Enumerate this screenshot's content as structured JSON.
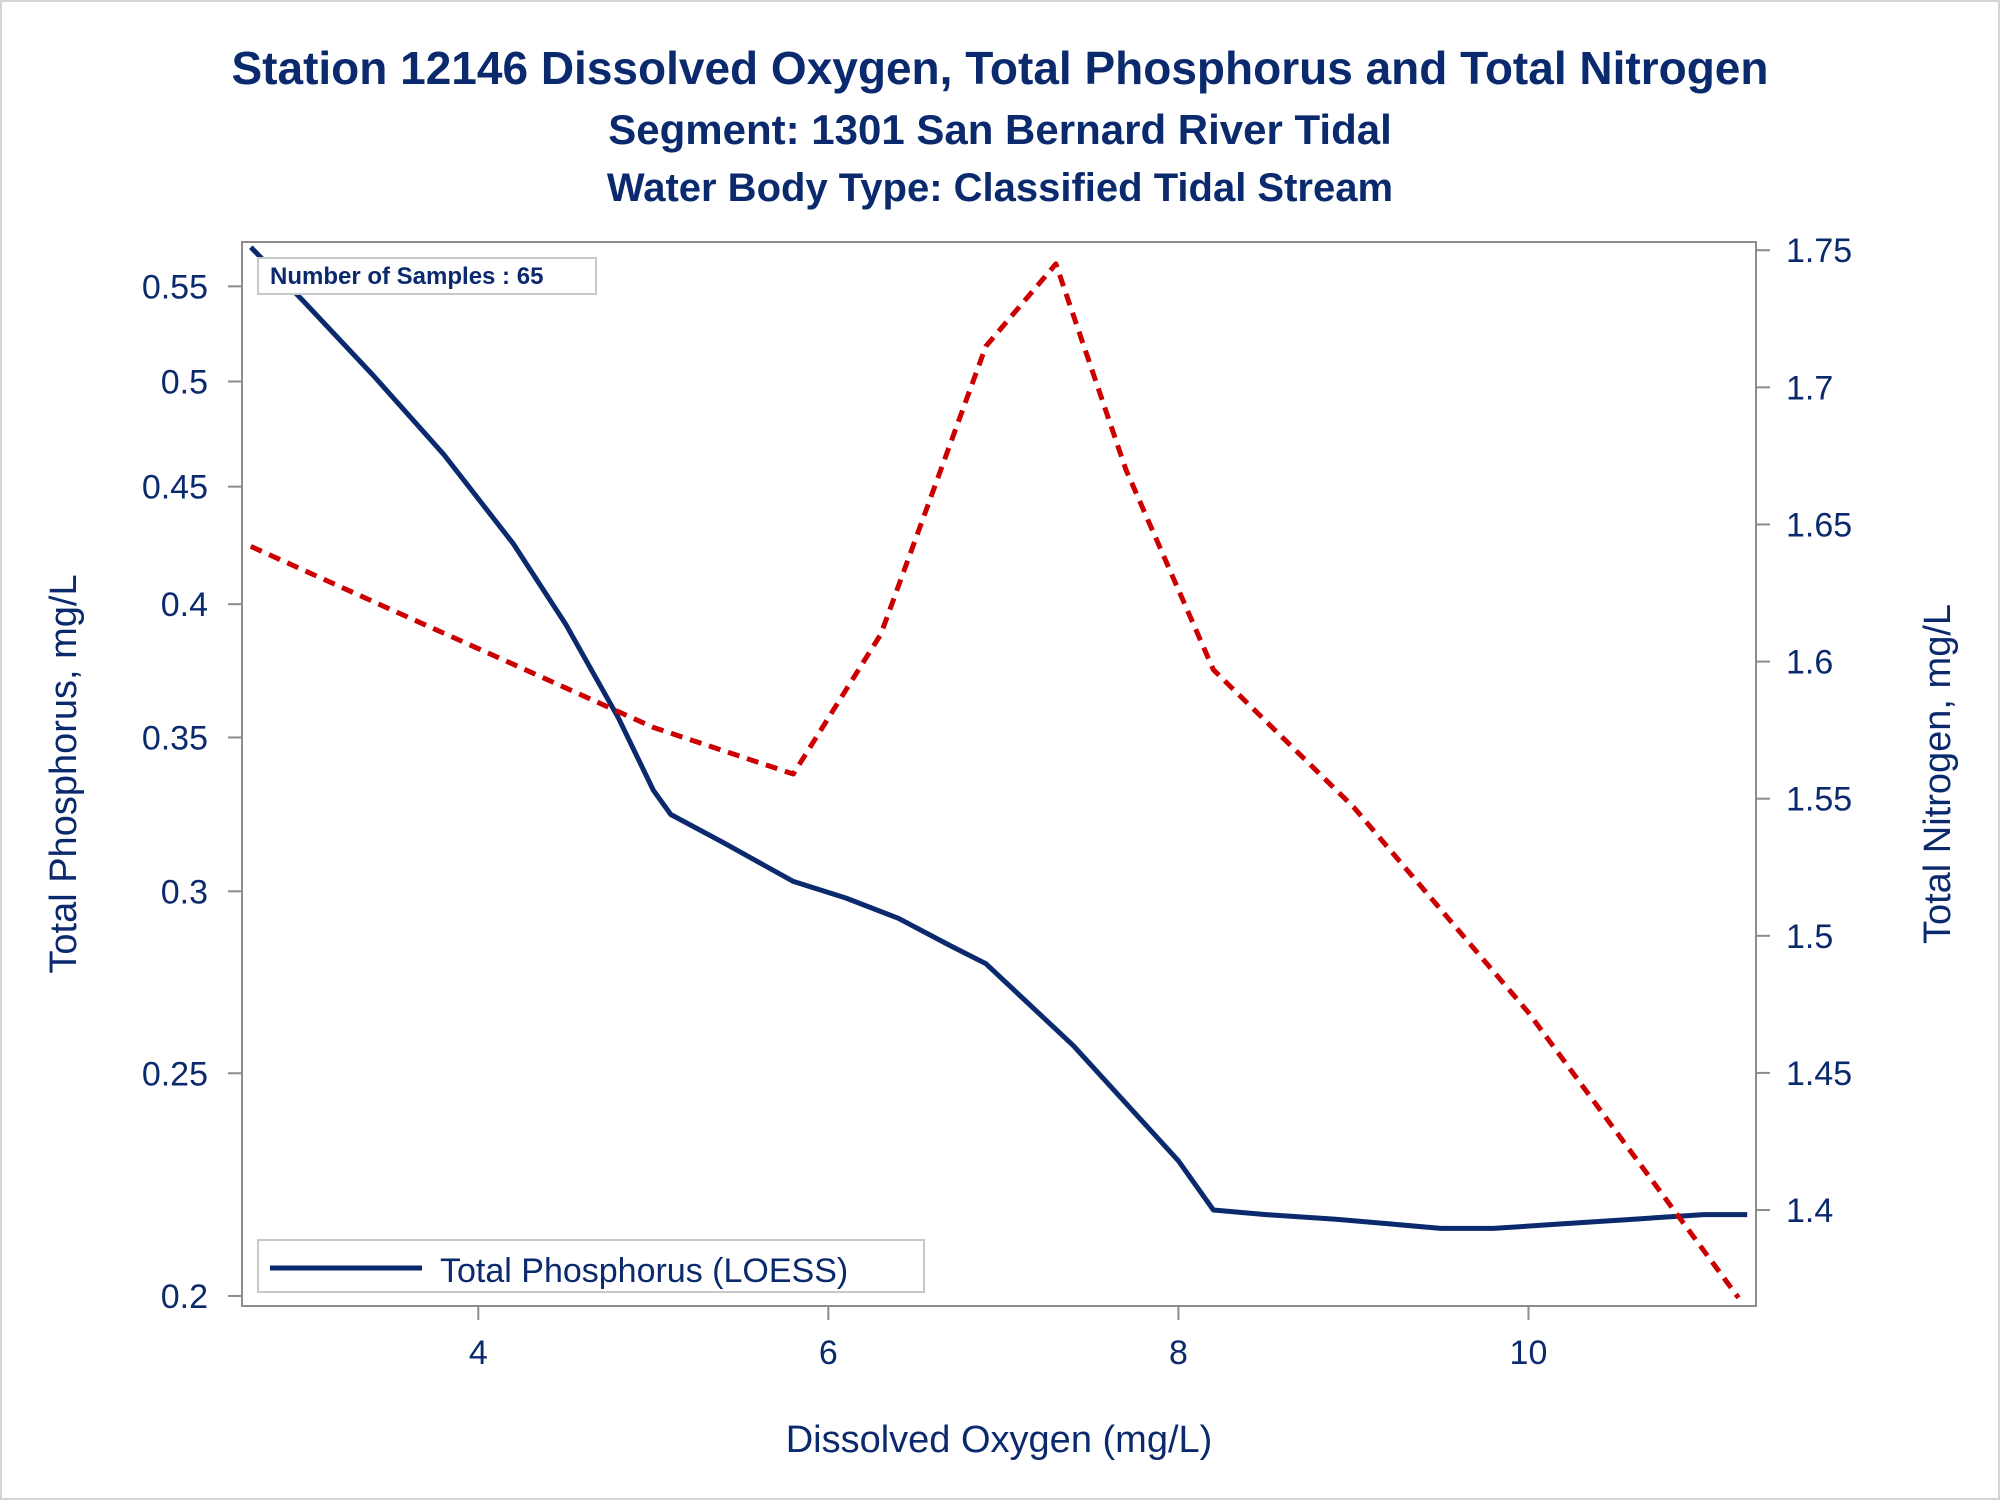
{
  "title": "Station 12146  Dissolved Oxygen, Total Phosphorus and Total Nitrogen",
  "subtitle": "Segment: 1301  San Bernard River Tidal",
  "subtitle2": "Water Body Type: Classified Tidal Stream",
  "colors": {
    "text": "#0b2a6e",
    "phosphorus": "#0b2a6e",
    "nitrogen": "#cc0000",
    "axis": "#8c8c8c"
  },
  "chart_data": {
    "type": "line",
    "title": "Station 12146  Dissolved Oxygen, Total Phosphorus and Total Nitrogen",
    "xlabel": "Dissolved Oxygen (mg/L)",
    "ylabel": "Total Phosphorus, mg/L",
    "y2label": "Total Nitrogen, mg/L",
    "xlim": [
      2.65,
      11.3
    ],
    "ylim": [
      0.198,
      0.575
    ],
    "y_scale": "log",
    "y2lim": [
      1.365,
      1.753
    ],
    "x_ticks": [
      "4",
      "6",
      "8",
      "10"
    ],
    "y_ticks": [
      "0.2",
      "0.25",
      "0.3",
      "0.35",
      "0.4",
      "0.45",
      "0.5",
      "0.55"
    ],
    "y2_ticks": [
      "1.4",
      "1.45",
      "1.5",
      "1.55",
      "1.6",
      "1.65",
      "1.7",
      "1.75"
    ],
    "annotation": "Number of Samples : 65",
    "legend": {
      "position": "bottom-left",
      "entries": [
        "Total Phosphorus (LOESS)"
      ]
    },
    "series": [
      {
        "name": "Total Phosphorus (LOESS)",
        "axis": "left",
        "style": "solid",
        "x": [
          2.7,
          3.0,
          3.4,
          3.8,
          4.2,
          4.5,
          4.8,
          5.0,
          5.1,
          5.4,
          5.8,
          6.1,
          6.4,
          6.7,
          6.9,
          7.1,
          7.4,
          7.8,
          8.0,
          8.2,
          8.5,
          8.9,
          9.2,
          9.5,
          9.8,
          10.2,
          10.6,
          11.0,
          11.25
        ],
        "y": [
          0.572,
          0.542,
          0.503,
          0.465,
          0.425,
          0.392,
          0.357,
          0.332,
          0.324,
          0.315,
          0.303,
          0.298,
          0.292,
          0.284,
          0.279,
          0.27,
          0.257,
          0.238,
          0.229,
          0.218,
          0.217,
          0.216,
          0.215,
          0.214,
          0.214,
          0.215,
          0.216,
          0.217,
          0.217
        ]
      },
      {
        "name": "Total Nitrogen",
        "axis": "right",
        "style": "dashed",
        "x": [
          2.7,
          3.5,
          4.2,
          5.0,
          5.8,
          6.3,
          6.9,
          7.3,
          7.7,
          8.2,
          9.0,
          10.0,
          11.2
        ],
        "y": [
          1.642,
          1.619,
          1.599,
          1.576,
          1.559,
          1.61,
          1.715,
          1.745,
          1.67,
          1.597,
          1.547,
          1.472,
          1.368
        ]
      }
    ]
  }
}
